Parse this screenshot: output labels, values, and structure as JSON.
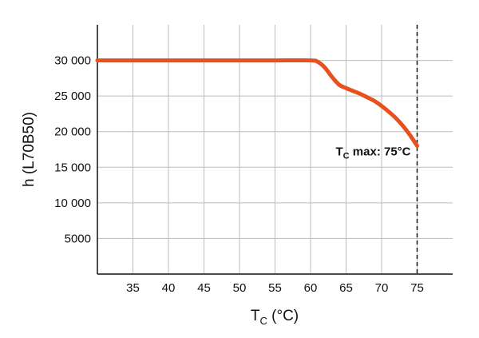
{
  "chart_data": {
    "type": "line",
    "xlabel_main": "T",
    "xlabel_sub": "C",
    "xlabel_unit": " (°C)",
    "ylabel": "h (L70B50)",
    "xlim": [
      30,
      80
    ],
    "ylim": [
      0,
      35000
    ],
    "x_ticks": [
      35,
      40,
      45,
      50,
      55,
      60,
      65,
      70,
      75
    ],
    "y_ticks": [
      5000,
      10000,
      15000,
      20000,
      25000,
      30000
    ],
    "x_tick_labels": [
      "35",
      "40",
      "45",
      "50",
      "55",
      "60",
      "65",
      "70",
      "75"
    ],
    "y_tick_labels": [
      "5000",
      "10 000",
      "15 000",
      "20 000",
      "25 000",
      "30 000"
    ],
    "grid": true,
    "series": [
      {
        "color": "#e8501e",
        "x": [
          30,
          35,
          40,
          45,
          50,
          55,
          60,
          61,
          62,
          63,
          64,
          65,
          66,
          67,
          68,
          69,
          70,
          71,
          72,
          73,
          74,
          75
        ],
        "y": [
          30000,
          30000,
          30000,
          30000,
          30000,
          30000,
          30000,
          29800,
          29000,
          27700,
          26600,
          26100,
          25700,
          25300,
          24800,
          24300,
          23600,
          22800,
          21900,
          20800,
          19500,
          18000
        ]
      }
    ],
    "max_line": {
      "x": 75,
      "style": "dashed"
    },
    "annotation": {
      "main": "T",
      "sub": "C",
      "rest": " max: 75°C",
      "x": 75,
      "y": 18000
    }
  }
}
